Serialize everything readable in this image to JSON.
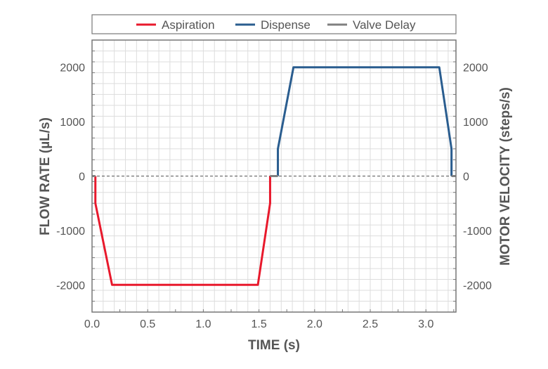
{
  "chart_data": {
    "type": "line",
    "xlabel": "TIME (s)",
    "ylabel": "FLOW RATE (µL/s)",
    "y2label": "MOTOR VELOCITY (steps/s)",
    "xlim": [
      0,
      3.27
    ],
    "ylim": [
      -2500,
      2500
    ],
    "xticks": [
      0.0,
      0.5,
      1.0,
      1.5,
      2.0,
      2.5,
      3.0
    ],
    "xtick_labels": [
      "0.0",
      "0.5",
      "1.0",
      "1.5",
      "2.0",
      "2.5",
      "3.0"
    ],
    "yticks": [
      -2000,
      -1000,
      0,
      1000,
      2000
    ],
    "ytick_labels": [
      "-2000",
      "-1000",
      "0",
      "1000",
      "2000"
    ],
    "grid": true,
    "legend_position": "top",
    "series": [
      {
        "name": "Aspiration",
        "color": "#e8192c",
        "x": [
          0.03,
          0.03,
          0.18,
          1.49,
          1.6,
          1.6
        ],
        "y": [
          0,
          -500,
          -2000,
          -2000,
          -500,
          0
        ]
      },
      {
        "name": "Dispense",
        "color": "#2a5d8f",
        "x": [
          1.67,
          1.67,
          1.81,
          3.12,
          3.23,
          3.23
        ],
        "y": [
          0,
          500,
          2000,
          2000,
          500,
          0
        ]
      },
      {
        "name": "Valve Delay",
        "color": "#808080",
        "segments": [
          [
            0,
            0.03
          ],
          [
            1.6,
            1.67
          ],
          [
            3.23,
            3.27
          ]
        ],
        "y": 0
      }
    ]
  }
}
